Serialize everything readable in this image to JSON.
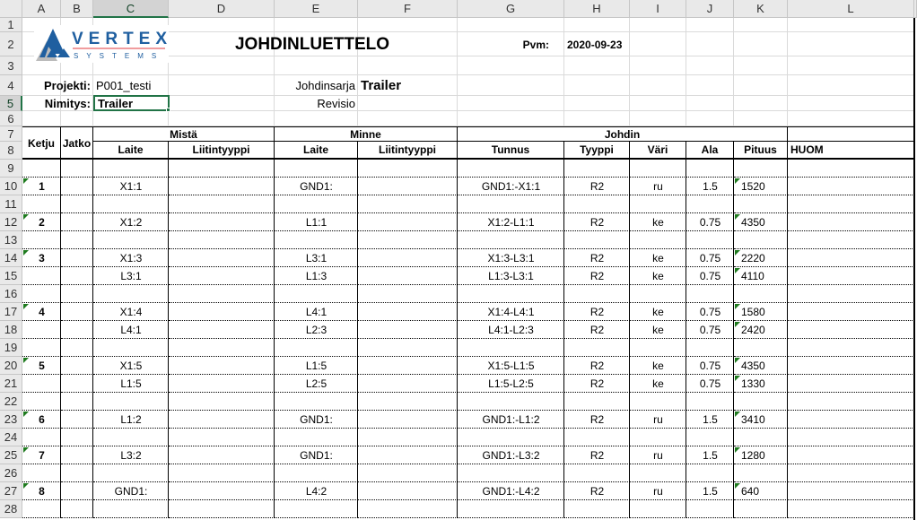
{
  "sheet": {
    "columns": [
      "A",
      "B",
      "C",
      "D",
      "E",
      "F",
      "G",
      "H",
      "I",
      "J",
      "K",
      "L"
    ],
    "selected_column": "C",
    "selected_row": 5,
    "colors": {
      "accent": "#217346",
      "comment_marker": "#1e7a1e",
      "logo_blue": "#1f5fa0",
      "logo_red": "#e0393e"
    }
  },
  "logo": {
    "name": "VERTEX",
    "sub": "SYSTEMS"
  },
  "header": {
    "title": "JOHDINLUETTELO",
    "date_label": "Pvm:",
    "date": "2020-09-23",
    "project_label": "Projekti:",
    "project": "P001_testi",
    "name_label": "Nimitys:",
    "name": "Trailer",
    "series_label": "Johdinsarja",
    "series": "Trailer",
    "revision_label": "Revisio",
    "revision": ""
  },
  "table_headers": {
    "ketju": "Ketju",
    "jatko": "Jatko",
    "from": "Mistä",
    "to": "Minne",
    "wire": "Johdin",
    "from_device": "Laite",
    "from_connector": "Liitintyyppi",
    "to_device": "Laite",
    "to_connector": "Liitintyyppi",
    "id": "Tunnus",
    "type": "Tyyppi",
    "color": "Väri",
    "area": "Ala",
    "length": "Pituus",
    "note": "HUOM"
  },
  "rows": [
    {
      "row": 10,
      "ketju": "1",
      "from": "X1:1",
      "to": "GND1:",
      "id": "GND1:-X1:1",
      "type": "R2",
      "color": "ru",
      "area": "1.5",
      "length": "1520"
    },
    {
      "row": 12,
      "ketju": "2",
      "from": "X1:2",
      "to": "L1:1",
      "id": "X1:2-L1:1",
      "type": "R2",
      "color": "ke",
      "area": "0.75",
      "length": "4350"
    },
    {
      "row": 14,
      "ketju": "3",
      "from": "X1:3",
      "to": "L3:1",
      "id": "X1:3-L3:1",
      "type": "R2",
      "color": "ke",
      "area": "0.75",
      "length": "2220"
    },
    {
      "row": 15,
      "ketju": "",
      "from": "L3:1",
      "to": "L1:3",
      "id": "L1:3-L3:1",
      "type": "R2",
      "color": "ke",
      "area": "0.75",
      "length": "4110"
    },
    {
      "row": 17,
      "ketju": "4",
      "from": "X1:4",
      "to": "L4:1",
      "id": "X1:4-L4:1",
      "type": "R2",
      "color": "ke",
      "area": "0.75",
      "length": "1580"
    },
    {
      "row": 18,
      "ketju": "",
      "from": "L4:1",
      "to": "L2:3",
      "id": "L4:1-L2:3",
      "type": "R2",
      "color": "ke",
      "area": "0.75",
      "length": "2420"
    },
    {
      "row": 20,
      "ketju": "5",
      "from": "X1:5",
      "to": "L1:5",
      "id": "X1:5-L1:5",
      "type": "R2",
      "color": "ke",
      "area": "0.75",
      "length": "4350"
    },
    {
      "row": 21,
      "ketju": "",
      "from": "L1:5",
      "to": "L2:5",
      "id": "L1:5-L2:5",
      "type": "R2",
      "color": "ke",
      "area": "0.75",
      "length": "1330"
    },
    {
      "row": 23,
      "ketju": "6",
      "from": "L1:2",
      "to": "GND1:",
      "id": "GND1:-L1:2",
      "type": "R2",
      "color": "ru",
      "area": "1.5",
      "length": "3410"
    },
    {
      "row": 25,
      "ketju": "7",
      "from": "L3:2",
      "to": "GND1:",
      "id": "GND1:-L3:2",
      "type": "R2",
      "color": "ru",
      "area": "1.5",
      "length": "1280"
    },
    {
      "row": 27,
      "ketju": "8",
      "from": "GND1:",
      "to": "L4:2",
      "id": "GND1:-L4:2",
      "type": "R2",
      "color": "ru",
      "area": "1.5",
      "length": "640"
    }
  ]
}
